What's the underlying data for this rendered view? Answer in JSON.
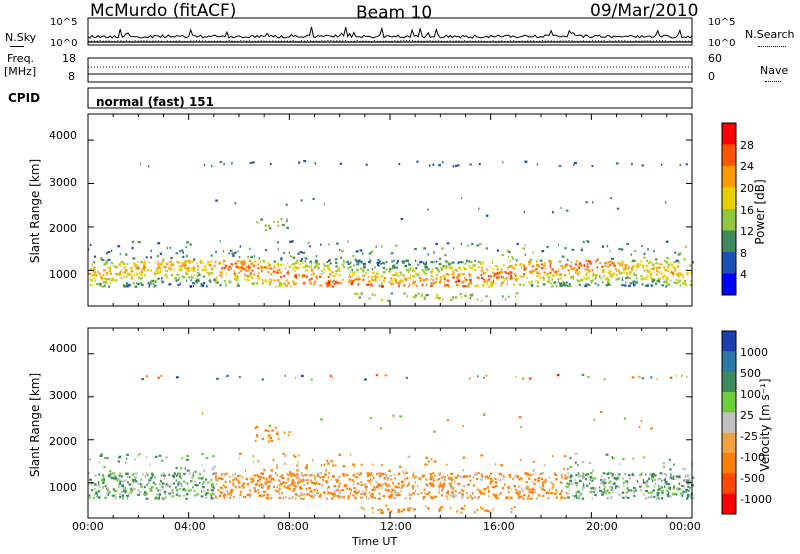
{
  "header": {
    "station": "McMurdo (fitACF)",
    "beam": "Beam 10",
    "date": "09/Mar/2010"
  },
  "top_panel": {
    "left_label": "N.Sky",
    "right_label": "N.Search",
    "left_ticks": [
      "10^5",
      "10^0"
    ],
    "right_ticks": [
      "10^5",
      "10^0"
    ]
  },
  "freq_panel": {
    "left_label_1": "Freq.",
    "left_label_2": "[MHz]",
    "right_label": "Nave",
    "left_ticks": [
      "18",
      "8"
    ],
    "right_ticks": [
      "60",
      "0"
    ]
  },
  "cpid": {
    "label": "CPID",
    "value": "normal (fast) 151"
  },
  "power_panel": {
    "ylabel": "Slant Range [km]",
    "yticks": [
      "4000",
      "3000",
      "2000",
      "1000"
    ],
    "colorbar_label": "Power [dB]",
    "colorbar_ticks": [
      "28",
      "24",
      "20",
      "16",
      "12",
      "8",
      "4"
    ],
    "colorbar_colors": [
      "#ff0000",
      "#ff5500",
      "#ff9a00",
      "#e8d000",
      "#92c83c",
      "#3d8a5c",
      "#1a52b5",
      "#0000ff"
    ]
  },
  "velocity_panel": {
    "ylabel": "Slant Range [km]",
    "yticks": [
      "4000",
      "3000",
      "2000",
      "1000"
    ],
    "colorbar_label": "Velocity [m s⁻¹]",
    "colorbar_ticks": [
      "1000",
      "500",
      "100",
      "25",
      "-25",
      "-100",
      "-500",
      "-1000"
    ],
    "colorbar_colors": [
      "#1a40b0",
      "#2a78a8",
      "#3b8c5a",
      "#6ccf3a",
      "#c0c0c0",
      "#f2a040",
      "#ff8000",
      "#ff4a00",
      "#ff0000"
    ]
  },
  "x_axis": {
    "label": "Time UT",
    "ticks": [
      "00:00",
      "04:00",
      "08:00",
      "12:00",
      "16:00",
      "20:00",
      "00:00"
    ]
  },
  "chart_data": [
    {
      "type": "line",
      "panel": "noise",
      "series": [
        {
          "name": "N.Sky"
        },
        {
          "name": "N.Search"
        }
      ],
      "yscale": "log",
      "ylim": [
        1,
        100000
      ],
      "xlim": [
        0,
        24
      ]
    },
    {
      "type": "line",
      "panel": "frequency",
      "series": [
        {
          "name": "Freq.",
          "approx_value": 9
        },
        {
          "name": "Nave",
          "approx_value": 40
        }
      ]
    },
    {
      "type": "heatmap",
      "panel": "power",
      "x_label": "Time UT",
      "y_label": "Slant Range [km]",
      "xlim": [
        0,
        24
      ],
      "ylim": [
        180,
        4600
      ],
      "colorbar": {
        "label": "Power [dB]",
        "range": [
          0,
          32
        ]
      },
      "features": [
        {
          "name": "main_echo_band",
          "t_start": 0.0,
          "t_end": 24.0,
          "range_km": [
            600,
            1300
          ],
          "power_db": [
            12,
            30
          ]
        },
        {
          "name": "far_band",
          "t_start": 2.0,
          "t_end": 24.0,
          "range_km": [
            3400,
            3550
          ],
          "power_db": [
            4,
            8
          ]
        },
        {
          "name": "band_2000km",
          "t_start": 6.5,
          "t_end": 8.0,
          "range_km": [
            1900,
            2300
          ],
          "power_db": [
            10,
            16
          ]
        },
        {
          "name": "low_band",
          "t_start": 10.5,
          "t_end": 17.0,
          "range_km": [
            300,
            500
          ],
          "power_db": [
            10,
            18
          ]
        }
      ]
    },
    {
      "type": "heatmap",
      "panel": "velocity",
      "x_label": "Time UT",
      "y_label": "Slant Range [km]",
      "xlim": [
        0,
        24
      ],
      "ylim": [
        180,
        4600
      ],
      "colorbar": {
        "label": "Velocity [m s⁻¹]",
        "levels": [
          1000,
          500,
          100,
          25,
          -25,
          -100,
          -500,
          -1000
        ]
      },
      "features": [
        {
          "name": "main_echo_band",
          "t_start": 0.0,
          "t_end": 24.0,
          "range_km": [
            600,
            1300
          ],
          "velocity_ms": [
            -500,
            500
          ]
        },
        {
          "name": "band_2000km",
          "t_start": 6.5,
          "t_end": 8.0,
          "range_km": [
            1900,
            2400
          ],
          "velocity_ms": [
            -500,
            -100
          ]
        },
        {
          "name": "low_band",
          "t_start": 10.5,
          "t_end": 17.0,
          "range_km": [
            300,
            500
          ],
          "velocity_ms": [
            -500,
            -100
          ]
        }
      ]
    }
  ]
}
